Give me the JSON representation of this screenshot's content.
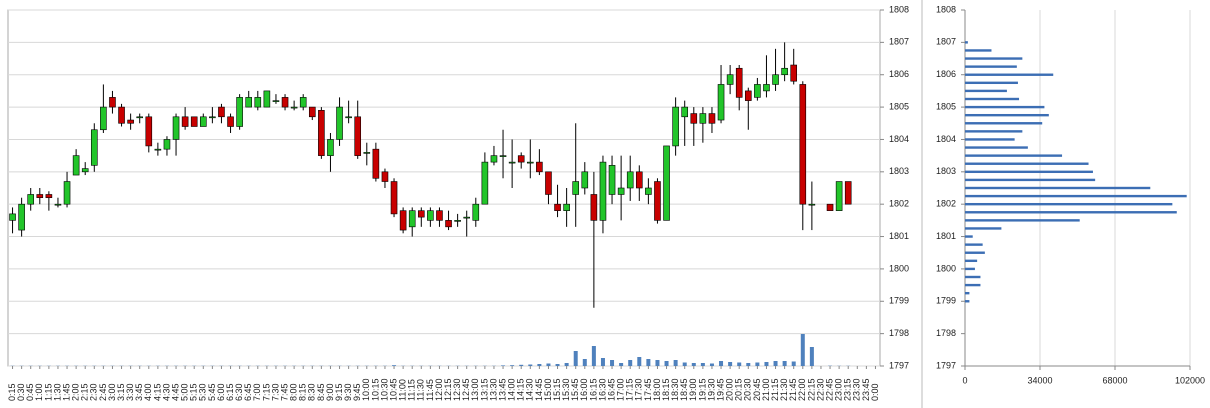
{
  "chart_data": [
    {
      "type": "candlestick",
      "categories": [
        "0:15",
        "0:30",
        "0:45",
        "1:00",
        "1:15",
        "1:30",
        "1:45",
        "2:00",
        "2:15",
        "2:30",
        "2:45",
        "3:00",
        "3:15",
        "3:30",
        "3:45",
        "4:00",
        "4:15",
        "4:30",
        "4:45",
        "5:00",
        "5:15",
        "5:30",
        "5:45",
        "6:00",
        "6:15",
        "6:30",
        "6:45",
        "7:00",
        "7:15",
        "7:30",
        "7:45",
        "8:00",
        "8:15",
        "8:30",
        "8:45",
        "9:00",
        "9:15",
        "9:30",
        "9:45",
        "10:00",
        "10:15",
        "10:30",
        "10:45",
        "11:00",
        "11:15",
        "11:30",
        "11:45",
        "12:00",
        "12:15",
        "12:30",
        "12:45",
        "13:00",
        "13:15",
        "13:30",
        "13:45",
        "14:00",
        "14:15",
        "14:30",
        "14:45",
        "15:00",
        "15:15",
        "15:30",
        "15:45",
        "16:00",
        "16:15",
        "16:30",
        "16:45",
        "17:00",
        "17:15",
        "17:30",
        "17:45",
        "18:00",
        "18:15",
        "18:30",
        "18:45",
        "19:00",
        "19:15",
        "19:30",
        "19:45",
        "20:00",
        "20:15",
        "20:30",
        "20:45",
        "21:00",
        "21:15",
        "21:30",
        "21:45",
        "22:00",
        "22:15",
        "22:30",
        "22:45",
        "23:00",
        "23:15",
        "23:30",
        "23:45",
        "0:00"
      ],
      "open": [
        1801.5,
        1801.2,
        1802,
        1802.3,
        1802.3,
        1802,
        1802,
        1802.9,
        1803,
        1803.2,
        1804.3,
        1805.3,
        1805,
        1804.6,
        1804.7,
        1804.7,
        1803.7,
        1803.7,
        1804,
        1804.7,
        1804.7,
        1804.4,
        1804.7,
        1805,
        1804.7,
        1804.4,
        1805,
        1805,
        1805,
        1805.2,
        1805.3,
        1805,
        1805,
        1805,
        1804.9,
        1803.5,
        1804,
        1804.7,
        1804.7,
        1803.6,
        1803.7,
        1803,
        1802.7,
        1801.8,
        1801.3,
        1801.8,
        1801.5,
        1801.8,
        1801.5,
        1801.5,
        1801.6,
        1801.5,
        1802,
        1803.3,
        1803.5,
        1803.3,
        1803.5,
        1803.3,
        1803.3,
        1803,
        1802,
        1801.8,
        1802.3,
        1802.5,
        1802.3,
        1801.5,
        1802.3,
        1802.3,
        1802.5,
        1803,
        1802.3,
        1802.7,
        1801.5,
        1803.8,
        1804.7,
        1804.8,
        1804.5,
        1804.8,
        1804.6,
        1805.7,
        1806.2,
        1805.5,
        1805.3,
        1805.5,
        1805.7,
        1806,
        1806.3,
        1805.7,
        1802,
        null,
        1802,
        1801.8,
        1802.7,
        null,
        null,
        null
      ],
      "high": [
        1801.9,
        1802.2,
        1802.5,
        1802.5,
        1802.4,
        1802.2,
        1803,
        1803.7,
        1803.3,
        1804.5,
        1805.7,
        1805.5,
        1805.1,
        1804.8,
        1804.8,
        1804.8,
        1803.9,
        1804.1,
        1804.8,
        1805,
        1804.7,
        1804.8,
        1805,
        1805.1,
        1804.8,
        1805.4,
        1805.5,
        1805.5,
        1805.5,
        1805.4,
        1805.4,
        1805.2,
        1805.4,
        1805,
        1805,
        1804.2,
        1805.3,
        1805.2,
        1805.2,
        1803.9,
        1803.9,
        1803.1,
        1802.8,
        1801.9,
        1801.9,
        1801.9,
        1801.9,
        1801.9,
        1801.8,
        1801.7,
        1801.8,
        1802.2,
        1803.6,
        1803.8,
        1804.3,
        1804,
        1803.6,
        1804,
        1803.7,
        1803,
        1802.6,
        1802.5,
        1804.5,
        1803.3,
        1803,
        1803.5,
        1803.5,
        1803.5,
        1803.5,
        1803.2,
        1802.8,
        1802.8,
        1803.8,
        1805.3,
        1805.2,
        1805,
        1805,
        1805,
        1806.3,
        1806.3,
        1806.3,
        1805.6,
        1805.9,
        1806.6,
        1806.8,
        1807,
        1806.8,
        1805.8,
        1802.7,
        null,
        1802,
        1802.7,
        1802.7,
        null,
        null,
        null
      ],
      "low": [
        1801.1,
        1801,
        1801.8,
        1802,
        1801.8,
        1801.9,
        1801.9,
        1802.9,
        1802.9,
        1803,
        1804.2,
        1804.8,
        1804.4,
        1804.3,
        1804.5,
        1803.6,
        1803.5,
        1803.5,
        1803.5,
        1804.3,
        1804.4,
        1804.4,
        1804.5,
        1804.5,
        1804.2,
        1804.3,
        1805,
        1804.9,
        1805,
        1805.1,
        1804.9,
        1804.9,
        1804.9,
        1804.6,
        1803.4,
        1803,
        1803.8,
        1804.5,
        1803.4,
        1803.2,
        1802.7,
        1802.5,
        1801.6,
        1801.1,
        1801,
        1801.3,
        1801.3,
        1801.3,
        1801.2,
        1801.3,
        1801,
        1801.3,
        1802,
        1803.2,
        1802.8,
        1802.5,
        1803.1,
        1802.8,
        1802.9,
        1802,
        1801.6,
        1801.3,
        1801.3,
        1802.3,
        1798.8,
        1801.1,
        1802,
        1801.5,
        1802.1,
        1802.1,
        1802,
        1801.4,
        1801.5,
        1803.5,
        1803.8,
        1803.8,
        1803.9,
        1804.2,
        1804.5,
        1805.4,
        1804.9,
        1804.3,
        1805.2,
        1805.3,
        1805.5,
        1805.8,
        1805.7,
        1801.2,
        1801.2,
        null,
        1801.8,
        1801.8,
        1802,
        null,
        null,
        null
      ],
      "close": [
        1801.7,
        1802,
        1802.3,
        1802.2,
        1802.2,
        1802,
        1802.7,
        1803.5,
        1803.1,
        1804.3,
        1805,
        1805,
        1804.5,
        1804.5,
        1804.7,
        1803.8,
        1803.7,
        1804,
        1804.7,
        1804.4,
        1804.4,
        1804.7,
        1804.7,
        1804.7,
        1804.4,
        1805.3,
        1805.3,
        1805.3,
        1805.5,
        1805.2,
        1805,
        1805,
        1805.3,
        1804.7,
        1803.5,
        1804,
        1805,
        1804.7,
        1803.5,
        1803.6,
        1802.8,
        1802.7,
        1801.7,
        1801.2,
        1801.8,
        1801.6,
        1801.8,
        1801.5,
        1801.3,
        1801.5,
        1801.6,
        1802,
        1803.3,
        1803.5,
        1803.5,
        1803.3,
        1803.3,
        1803.3,
        1803,
        1802.3,
        1801.8,
        1802,
        1802.7,
        1803,
        1801.5,
        1803.3,
        1803.2,
        1802.5,
        1803,
        1802.5,
        1802.5,
        1801.5,
        1803.8,
        1805,
        1805,
        1804.5,
        1804.8,
        1804.5,
        1805.7,
        1806,
        1805.3,
        1805.2,
        1805.7,
        1805.7,
        1806,
        1806.2,
        1805.8,
        1802,
        1802,
        null,
        1801.8,
        1802.7,
        1802,
        null,
        null,
        null
      ],
      "volume": [
        200,
        200,
        200,
        200,
        200,
        200,
        200,
        200,
        200,
        200,
        200,
        200,
        200,
        200,
        200,
        200,
        200,
        200,
        200,
        200,
        200,
        200,
        200,
        200,
        200,
        200,
        200,
        200,
        200,
        200,
        200,
        200,
        200,
        200,
        200,
        200,
        200,
        200,
        200,
        200,
        200,
        200,
        800,
        200,
        200,
        200,
        200,
        200,
        200,
        200,
        200,
        200,
        200,
        200,
        600,
        800,
        1200,
        1500,
        2000,
        2500,
        2000,
        3000,
        15000,
        7000,
        20000,
        8000,
        6000,
        3000,
        6000,
        9000,
        7000,
        6000,
        5000,
        6000,
        3500,
        3000,
        3000,
        2500,
        5000,
        4000,
        3500,
        3000,
        3500,
        4000,
        5000,
        5000,
        4500,
        32000,
        19000,
        null,
        300,
        200,
        200,
        null,
        null,
        null
      ],
      "up_color": "#22c52a",
      "down_color": "#c80000",
      "volume_color": "#4f81bd",
      "ylim": [
        1797,
        1808
      ],
      "yticks": [
        1797,
        1798,
        1799,
        1800,
        1801,
        1802,
        1803,
        1804,
        1805,
        1806,
        1807,
        1808
      ],
      "grid": true
    },
    {
      "type": "barh",
      "y": [
        1807,
        1806.75,
        1806.5,
        1806.25,
        1806,
        1805.75,
        1805.5,
        1805.25,
        1805,
        1804.75,
        1804.5,
        1804.25,
        1804,
        1803.75,
        1803.5,
        1803.25,
        1803,
        1802.75,
        1802.5,
        1802.25,
        1802,
        1801.75,
        1801.5,
        1801.25,
        1801,
        1800.75,
        1800.5,
        1800.25,
        1800,
        1799.75,
        1799.5,
        1799.25,
        1799
      ],
      "values": [
        1300,
        12000,
        26000,
        23500,
        40000,
        24000,
        19000,
        24500,
        36000,
        38000,
        35000,
        26000,
        22500,
        28500,
        44000,
        56000,
        58000,
        59000,
        84000,
        100500,
        94000,
        96000,
        52000,
        16500,
        3500,
        8000,
        9000,
        5500,
        4500,
        7000,
        7000,
        2000,
        2000
      ],
      "color": "#3c6eb4",
      "xlim": [
        0,
        102000
      ],
      "xticks": [
        0,
        34000,
        68000,
        102000
      ],
      "ylim": [
        1797,
        1808
      ],
      "yticks": [
        1797,
        1798,
        1799,
        1800,
        1801,
        1802,
        1803,
        1804,
        1805,
        1806,
        1807,
        1808
      ],
      "grid": true
    }
  ]
}
